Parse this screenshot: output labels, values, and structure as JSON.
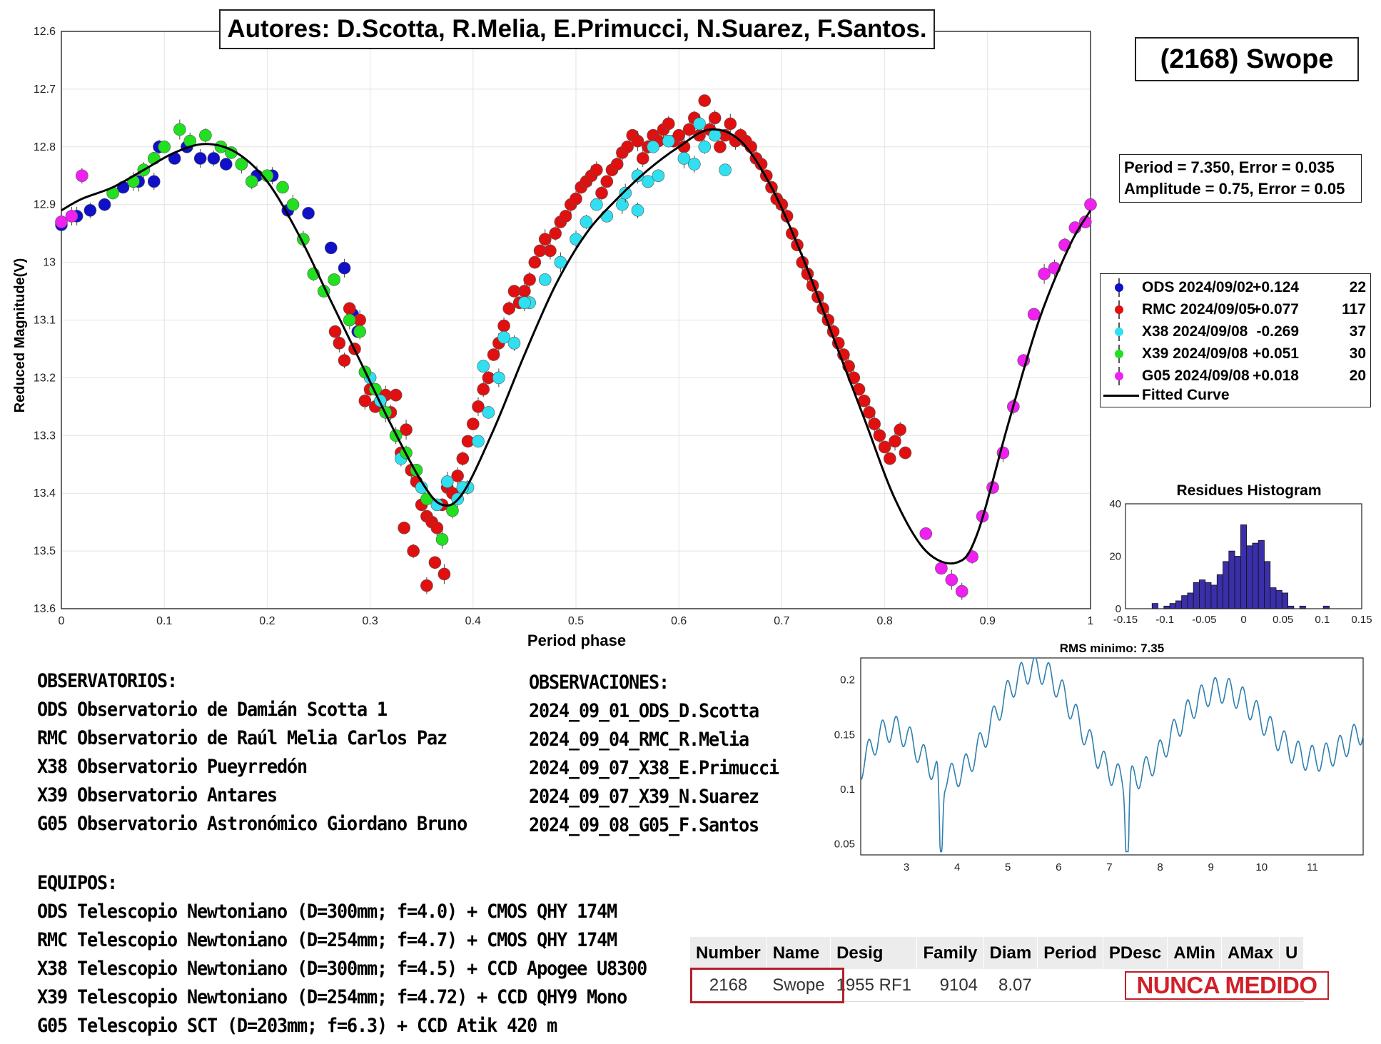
{
  "header": {
    "authors": "Autores: D.Scotta, R.Melia, E.Primucci, N.Suarez, F.Santos.",
    "object": "(2168) Swope"
  },
  "params": {
    "period_line": "Period =  7.350, Error = 0.035",
    "amplitude_line": "Amplitude = 0.75, Error = 0.05"
  },
  "legend": {
    "items": [
      {
        "name": "ODS 2024/09/02",
        "offset": "+0.124",
        "count": "22",
        "color": "#1010c8"
      },
      {
        "name": "RMC 2024/09/05",
        "offset": "+0.077",
        "count": "117",
        "color": "#e01010"
      },
      {
        "name": "X38 2024/09/08",
        "offset": "-0.269",
        "count": "37",
        "color": "#30e0f0"
      },
      {
        "name": "X39 2024/09/08",
        "offset": "+0.051",
        "count": "30",
        "color": "#20e020"
      },
      {
        "name": "G05 2024/09/08",
        "offset": "+0.018",
        "count": "20",
        "color": "#f020f0"
      }
    ],
    "curve_label": "Fitted Curve"
  },
  "chart_data": [
    {
      "type": "scatter",
      "xlabel": "Period phase",
      "ylabel": "Reduced Magnitude(V)",
      "xlim": [
        0,
        1
      ],
      "ylim": [
        12.6,
        13.6
      ],
      "y_inverted": true,
      "x_ticks": [
        "0",
        "0.1",
        "0.2",
        "0.3",
        "0.4",
        "0.5",
        "0.6",
        "0.7",
        "0.8",
        "0.9",
        "1"
      ],
      "y_ticks": [
        "12.6",
        "12.7",
        "12.8",
        "12.9",
        "13",
        "13.1",
        "13.2",
        "13.3",
        "13.4",
        "13.5",
        "13.6"
      ],
      "grid": true,
      "fitted_curve": {
        "name": "Fitted Curve",
        "x": [
          0,
          0.02,
          0.05,
          0.08,
          0.11,
          0.14,
          0.17,
          0.2,
          0.23,
          0.26,
          0.29,
          0.32,
          0.35,
          0.37,
          0.39,
          0.42,
          0.45,
          0.48,
          0.51,
          0.54,
          0.57,
          0.6,
          0.63,
          0.66,
          0.69,
          0.72,
          0.75,
          0.78,
          0.81,
          0.84,
          0.87,
          0.89,
          0.92,
          0.95,
          0.98,
          1.0
        ],
        "y": [
          12.91,
          12.89,
          12.87,
          12.84,
          12.81,
          12.795,
          12.81,
          12.86,
          12.95,
          13.06,
          13.17,
          13.28,
          13.38,
          13.42,
          13.4,
          13.29,
          13.16,
          13.04,
          12.95,
          12.89,
          12.84,
          12.8,
          12.77,
          12.79,
          12.87,
          12.99,
          13.13,
          13.27,
          13.41,
          13.5,
          13.52,
          13.47,
          13.28,
          13.1,
          12.97,
          12.91
        ]
      },
      "series": [
        {
          "name": "ODS 2024/09/02",
          "color": "#1010c8",
          "x": [
            0.0,
            0.015,
            0.028,
            0.042,
            0.06,
            0.075,
            0.09,
            0.095,
            0.11,
            0.122,
            0.135,
            0.148,
            0.16,
            0.175,
            0.19,
            0.205,
            0.22,
            0.24,
            0.262,
            0.275,
            0.283,
            0.288
          ],
          "y": [
            12.935,
            12.92,
            12.91,
            12.9,
            12.87,
            12.86,
            12.86,
            12.8,
            12.82,
            12.8,
            12.82,
            12.82,
            12.83,
            12.83,
            12.85,
            12.85,
            12.91,
            12.915,
            12.975,
            13.01,
            13.09,
            13.12
          ]
        },
        {
          "name": "RMC 2024/09/05",
          "color": "#e01010",
          "x": [
            0.266,
            0.27,
            0.275,
            0.28,
            0.285,
            0.29,
            0.295,
            0.3,
            0.305,
            0.31,
            0.315,
            0.32,
            0.325,
            0.33,
            0.335,
            0.34,
            0.345,
            0.35,
            0.355,
            0.36,
            0.365,
            0.37,
            0.375,
            0.38,
            0.385,
            0.39,
            0.395,
            0.4,
            0.405,
            0.41,
            0.415,
            0.42,
            0.425,
            0.43,
            0.435,
            0.44,
            0.445,
            0.45,
            0.455,
            0.46,
            0.465,
            0.47,
            0.475,
            0.48,
            0.485,
            0.49,
            0.495,
            0.5,
            0.505,
            0.51,
            0.515,
            0.52,
            0.525,
            0.53,
            0.535,
            0.54,
            0.545,
            0.55,
            0.555,
            0.56,
            0.565,
            0.57,
            0.575,
            0.58,
            0.585,
            0.59,
            0.595,
            0.6,
            0.605,
            0.61,
            0.615,
            0.62,
            0.625,
            0.63,
            0.635,
            0.64,
            0.645,
            0.65,
            0.655,
            0.66,
            0.665,
            0.67,
            0.675,
            0.68,
            0.685,
            0.69,
            0.695,
            0.7,
            0.705,
            0.71,
            0.715,
            0.72,
            0.725,
            0.73,
            0.735,
            0.74,
            0.745,
            0.75,
            0.755,
            0.76,
            0.765,
            0.77,
            0.775,
            0.78,
            0.785,
            0.79,
            0.795,
            0.8,
            0.805,
            0.81,
            0.815,
            0.82,
            0.363,
            0.372,
            0.355,
            0.342,
            0.333
          ],
          "y": [
            13.12,
            13.14,
            13.17,
            13.08,
            13.15,
            13.1,
            13.24,
            13.22,
            13.25,
            13.24,
            13.23,
            13.26,
            13.23,
            13.33,
            13.29,
            13.36,
            13.38,
            13.42,
            13.44,
            13.45,
            13.46,
            13.42,
            13.39,
            13.4,
            13.37,
            13.34,
            13.31,
            13.28,
            13.25,
            13.22,
            13.2,
            13.16,
            13.14,
            13.11,
            13.08,
            13.05,
            13.07,
            13.05,
            13.03,
            13.0,
            12.98,
            12.96,
            12.98,
            12.95,
            12.93,
            12.92,
            12.9,
            12.89,
            12.87,
            12.86,
            12.85,
            12.84,
            12.88,
            12.86,
            12.84,
            12.83,
            12.81,
            12.8,
            12.78,
            12.79,
            12.82,
            12.8,
            12.78,
            12.79,
            12.77,
            12.76,
            12.79,
            12.78,
            12.8,
            12.77,
            12.75,
            12.78,
            12.72,
            12.77,
            12.75,
            12.8,
            12.78,
            12.76,
            12.79,
            12.78,
            12.79,
            12.8,
            12.82,
            12.83,
            12.85,
            12.87,
            12.89,
            12.9,
            12.92,
            12.95,
            12.97,
            13.0,
            13.02,
            13.04,
            13.06,
            13.08,
            13.1,
            13.12,
            13.14,
            13.16,
            13.18,
            13.2,
            13.22,
            13.24,
            13.26,
            13.28,
            13.3,
            13.32,
            13.34,
            13.31,
            13.29,
            13.33,
            13.52,
            13.54,
            13.56,
            13.5,
            13.46
          ]
        },
        {
          "name": "X38 2024/09/08",
          "color": "#30e0f0",
          "x": [
            0.3,
            0.31,
            0.33,
            0.35,
            0.365,
            0.375,
            0.385,
            0.395,
            0.405,
            0.415,
            0.425,
            0.44,
            0.455,
            0.47,
            0.485,
            0.5,
            0.51,
            0.52,
            0.53,
            0.545,
            0.56,
            0.575,
            0.59,
            0.605,
            0.615,
            0.625,
            0.635,
            0.645,
            0.548,
            0.56,
            0.57,
            0.58,
            0.62,
            0.45,
            0.43,
            0.41,
            0.39
          ],
          "y": [
            13.2,
            13.24,
            13.34,
            13.39,
            13.42,
            13.38,
            13.41,
            13.39,
            13.31,
            13.26,
            13.2,
            13.14,
            13.07,
            13.03,
            13.0,
            12.96,
            12.93,
            12.9,
            12.92,
            12.9,
            12.85,
            12.8,
            12.79,
            12.82,
            12.83,
            12.8,
            12.78,
            12.84,
            12.88,
            12.91,
            12.86,
            12.85,
            12.76,
            13.07,
            13.13,
            13.18,
            13.39
          ]
        },
        {
          "name": "X39 2024/09/08",
          "color": "#20e020",
          "x": [
            0.05,
            0.07,
            0.08,
            0.09,
            0.1,
            0.115,
            0.125,
            0.14,
            0.155,
            0.165,
            0.175,
            0.185,
            0.2,
            0.215,
            0.225,
            0.235,
            0.245,
            0.255,
            0.265,
            0.28,
            0.29,
            0.295,
            0.305,
            0.315,
            0.325,
            0.335,
            0.345,
            0.355,
            0.37,
            0.38
          ],
          "y": [
            12.88,
            12.86,
            12.84,
            12.82,
            12.8,
            12.77,
            12.79,
            12.78,
            12.8,
            12.81,
            12.83,
            12.86,
            12.85,
            12.87,
            12.9,
            12.96,
            13.02,
            13.05,
            13.03,
            13.1,
            13.12,
            13.19,
            13.22,
            13.26,
            13.3,
            13.33,
            13.36,
            13.41,
            13.48,
            13.43
          ]
        },
        {
          "name": "G05 2024/09/08",
          "color": "#f020f0",
          "x": [
            0.0,
            0.01,
            0.02,
            0.84,
            0.855,
            0.865,
            0.875,
            0.885,
            0.895,
            0.905,
            0.915,
            0.925,
            0.935,
            0.945,
            0.955,
            0.965,
            0.975,
            0.985,
            0.995,
            1.0
          ],
          "y": [
            12.93,
            12.92,
            12.85,
            13.47,
            13.53,
            13.55,
            13.57,
            13.51,
            13.44,
            13.39,
            13.33,
            13.25,
            13.17,
            13.09,
            13.02,
            13.01,
            12.97,
            12.94,
            12.93,
            12.9
          ]
        }
      ]
    },
    {
      "type": "bar",
      "title": "Residues Histogram",
      "xlim": [
        -0.15,
        0.15
      ],
      "ylim": [
        0,
        40
      ],
      "x_ticks": [
        "-0.15",
        "-0.1",
        "-0.05",
        "0",
        "0.05",
        "0.1",
        "0.15"
      ],
      "y_ticks": [
        "0",
        "20",
        "40"
      ],
      "bin_width": 0.0075,
      "bins_center": [
        -0.1125,
        -0.105,
        -0.0975,
        -0.09,
        -0.0825,
        -0.075,
        -0.0675,
        -0.06,
        -0.0525,
        -0.045,
        -0.0375,
        -0.03,
        -0.0225,
        -0.015,
        -0.0075,
        0,
        0.0075,
        0.015,
        0.0225,
        0.03,
        0.0375,
        0.045,
        0.0525,
        0.06,
        0.0675,
        0.075,
        0.0825,
        0.09,
        0.0975,
        0.105,
        0.1125
      ],
      "values": [
        2,
        0,
        1,
        2,
        3,
        5,
        6,
        10,
        11,
        10,
        9,
        13,
        18,
        22,
        20,
        32,
        24,
        25,
        26,
        18,
        8,
        7,
        6,
        1,
        0,
        1,
        0,
        0,
        0,
        1,
        0
      ]
    },
    {
      "type": "line",
      "title": "RMS minimo: 7.35",
      "xlim": [
        2.1,
        12
      ],
      "ylim": [
        0.04,
        0.22
      ],
      "x_ticks": [
        "3",
        "4",
        "5",
        "6",
        "7",
        "8",
        "9",
        "10",
        "11"
      ],
      "y_ticks": [
        "0.05",
        "0.1",
        "0.15",
        "0.2"
      ],
      "color": "#2e7fae",
      "minimum_x": 7.35
    }
  ],
  "text_blocks": {
    "observatorios_title": "OBSERVATORIOS:",
    "observatorios": [
      "ODS Observatorio de Damián Scotta 1",
      "RMC Observatorio de Raúl Melia Carlos Paz",
      "X38 Observatorio Pueyrredón",
      "X39 Observatorio Antares",
      "G05 Observatorio Astronómico Giordano Bruno"
    ],
    "observaciones_title": "OBSERVACIONES:",
    "observaciones": [
      "2024_09_01_ODS_D.Scotta",
      "2024_09_04_RMC_R.Melia",
      "2024_09_07_X38_E.Primucci",
      "2024_09_07_X39_N.Suarez",
      "2024_09_08_G05_F.Santos"
    ],
    "equipos_title": "EQUIPOS:",
    "equipos": [
      "ODS Telescopio Newtoniano (D=300mm; f=4.0) + CMOS QHY 174M",
      "RMC Telescopio Newtoniano (D=254mm; f=4.7) + CMOS QHY 174M",
      "X38 Telescopio Newtoniano (D=300mm; f=4.5) + CCD Apogee U8300",
      "X39 Telescopio Newtoniano (D=254mm; f=4.72) + CCD QHY9 Mono",
      "G05 Telescopio SCT (D=203mm; f=6.3) + CCD Atik 420 m"
    ]
  },
  "table": {
    "headers": [
      "Number",
      "Name",
      "Desig",
      "Family",
      "Diam",
      "Period",
      "PDesc",
      "AMin",
      "AMax",
      "U"
    ],
    "row": [
      "2168",
      "Swope",
      "1955 RF1",
      "9104",
      "8.07"
    ],
    "stamp": "NUNCA MEDIDO"
  }
}
